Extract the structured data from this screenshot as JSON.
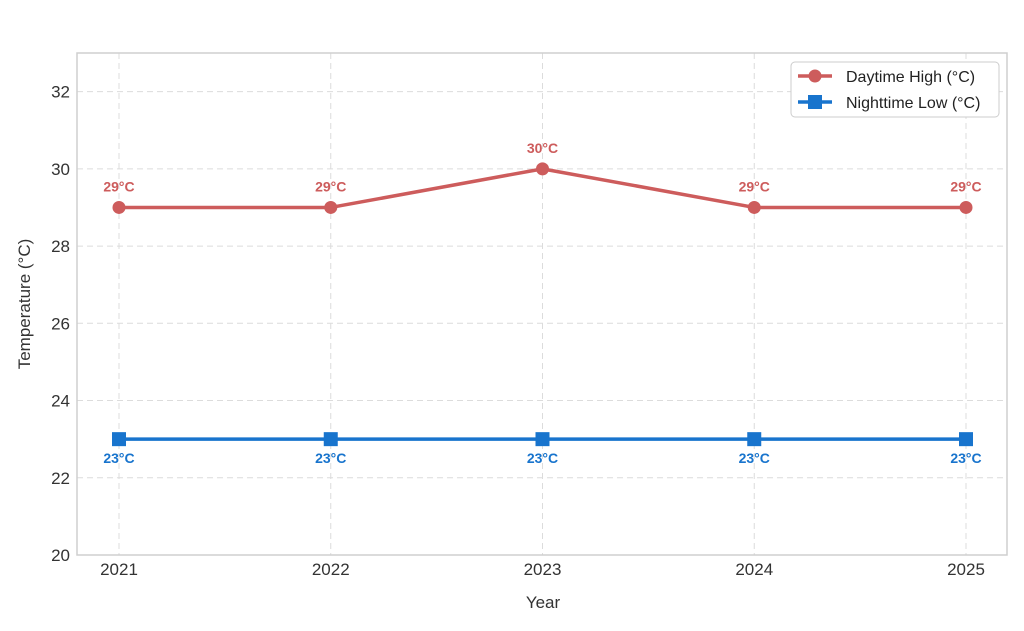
{
  "chart_data": {
    "type": "line",
    "title": "",
    "xlabel": "Year",
    "ylabel": "Temperature (°C)",
    "x": [
      "2021",
      "2022",
      "2023",
      "2024",
      "2025"
    ],
    "ylim": [
      20,
      33
    ],
    "yticks": [
      20,
      22,
      24,
      26,
      28,
      30,
      32
    ],
    "grid": true,
    "legend_position": "top-right",
    "series": [
      {
        "name": "Daytime High (°C)",
        "values": [
          29,
          29,
          30,
          29,
          29
        ],
        "labels": [
          "29°C",
          "29°C",
          "30°C",
          "29°C",
          "29°C"
        ],
        "color": "#cd5c5c",
        "marker": "circle"
      },
      {
        "name": "Nighttime Low (°C)",
        "values": [
          23,
          23,
          23,
          23,
          23
        ],
        "labels": [
          "23°C",
          "23°C",
          "23°C",
          "23°C",
          "23°C"
        ],
        "color": "#1874cd",
        "marker": "square"
      }
    ]
  }
}
